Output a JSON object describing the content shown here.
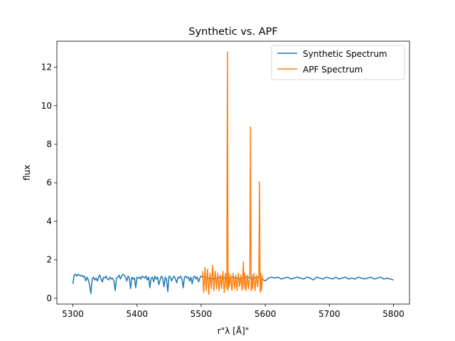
{
  "chart_data": {
    "type": "line",
    "title": "Synthetic vs. APF",
    "xlabel": "r\"$\\lambda$ [$\\AA$]\"",
    "xlabel_display": "r\"λ [Å]\"",
    "ylabel": "flux",
    "xlim": [
      5275,
      5825
    ],
    "ylim": [
      -0.3,
      13.35
    ],
    "xticks": [
      5300,
      5400,
      5500,
      5600,
      5700,
      5800
    ],
    "yticks": [
      0,
      2,
      4,
      6,
      8,
      10,
      12
    ],
    "grid": false,
    "legend_position": "upper right",
    "series": [
      {
        "name": "Synthetic Spectrum",
        "color": "#1f77b4",
        "x": [
          5300,
          5302,
          5304,
          5306,
          5308,
          5310,
          5312,
          5314,
          5316,
          5318,
          5320,
          5322,
          5324,
          5326,
          5328,
          5330,
          5332,
          5334,
          5336,
          5338,
          5340,
          5342,
          5344,
          5346,
          5348,
          5350,
          5352,
          5354,
          5356,
          5358,
          5360,
          5362,
          5364,
          5366,
          5368,
          5370,
          5372,
          5374,
          5376,
          5378,
          5380,
          5382,
          5384,
          5386,
          5388,
          5390,
          5392,
          5394,
          5396,
          5398,
          5400,
          5402,
          5404,
          5406,
          5408,
          5410,
          5412,
          5414,
          5416,
          5418,
          5420,
          5422,
          5424,
          5426,
          5428,
          5430,
          5432,
          5434,
          5436,
          5438,
          5440,
          5442,
          5444,
          5446,
          5448,
          5450,
          5452,
          5454,
          5456,
          5458,
          5460,
          5462,
          5464,
          5466,
          5468,
          5470,
          5472,
          5474,
          5476,
          5478,
          5480,
          5482,
          5484,
          5486,
          5488,
          5490,
          5492,
          5494,
          5496,
          5498,
          5500,
          5505,
          5510,
          5520,
          5530,
          5540,
          5550,
          5560,
          5570,
          5580,
          5590,
          5600,
          5605,
          5610,
          5615,
          5620,
          5625,
          5630,
          5635,
          5640,
          5645,
          5650,
          5655,
          5660,
          5665,
          5670,
          5675,
          5680,
          5685,
          5690,
          5695,
          5700,
          5705,
          5710,
          5715,
          5720,
          5725,
          5730,
          5735,
          5740,
          5745,
          5750,
          5755,
          5760,
          5765,
          5770,
          5775,
          5780,
          5785,
          5790,
          5795,
          5800
        ],
        "y": [
          0.75,
          1.2,
          1.25,
          1.15,
          1.25,
          1.2,
          1.15,
          1.2,
          1.1,
          1.15,
          0.9,
          1.1,
          0.95,
          0.7,
          0.25,
          1.0,
          1.1,
          0.95,
          1.05,
          0.9,
          1.1,
          1.2,
          1.0,
          0.85,
          1.1,
          1.05,
          1.15,
          1.0,
          0.95,
          1.1,
          1.0,
          1.05,
          0.9,
          0.4,
          1.05,
          1.1,
          1.2,
          1.0,
          1.15,
          1.25,
          1.2,
          1.1,
          0.9,
          1.15,
          1.05,
          0.5,
          1.1,
          1.0,
          1.05,
          0.55,
          1.1,
          1.05,
          1.1,
          1.0,
          1.15,
          1.1,
          1.05,
          1.15,
          0.95,
          1.1,
          0.55,
          1.05,
          1.1,
          0.85,
          1.15,
          1.0,
          1.1,
          0.7,
          0.95,
          1.15,
          1.05,
          0.6,
          1.1,
          1.0,
          0.35,
          1.15,
          1.1,
          0.9,
          1.05,
          1.15,
          1.0,
          0.8,
          1.1,
          1.05,
          1.15,
          1.0,
          0.55,
          1.1,
          1.15,
          1.05,
          1.1,
          0.9,
          1.1,
          0.75,
          1.1,
          1.15,
          1.0,
          1.1,
          0.85,
          1.05,
          1.15,
          1.1,
          1.05,
          1.0,
          1.1,
          1.05,
          1.1,
          1.0,
          1.1,
          1.05,
          1.1,
          0.9,
          1.05,
          1.1,
          1.05,
          1.1,
          1.0,
          1.05,
          1.1,
          1.0,
          1.05,
          1.1,
          1.05,
          1.0,
          1.1,
          1.05,
          0.95,
          1.1,
          1.05,
          1.0,
          1.1,
          1.05,
          1.0,
          1.1,
          1.0,
          1.05,
          1.1,
          1.0,
          1.05,
          1.0,
          1.1,
          1.05,
          1.0,
          1.05,
          1.1,
          1.0,
          1.05,
          1.1,
          1.0,
          1.05,
          1.0,
          0.95
        ]
      },
      {
        "name": "APF Spectrum",
        "color": "#ff7f0e",
        "x": [
          5502,
          5504,
          5506,
          5508,
          5510,
          5512,
          5514,
          5516,
          5518,
          5520,
          5522,
          5524,
          5526,
          5528,
          5530,
          5532,
          5534,
          5536,
          5538,
          5540,
          5541,
          5542,
          5543,
          5544,
          5546,
          5548,
          5550,
          5552,
          5554,
          5556,
          5558,
          5560,
          5562,
          5564,
          5566,
          5567,
          5568,
          5570,
          5572,
          5574,
          5576,
          5577,
          5578,
          5579,
          5580,
          5582,
          5584,
          5586,
          5588,
          5590,
          5591,
          5592,
          5593,
          5594,
          5596
        ],
        "y": [
          1.4,
          0.3,
          1.6,
          0.4,
          1.5,
          0.2,
          1.3,
          0.5,
          1.7,
          0.4,
          1.4,
          0.5,
          1.3,
          0.4,
          1.2,
          0.5,
          1.4,
          0.3,
          1.3,
          0.5,
          12.8,
          0.4,
          1.3,
          0.6,
          1.2,
          0.4,
          1.3,
          0.5,
          1.2,
          0.4,
          1.3,
          0.6,
          1.2,
          0.4,
          1.9,
          0.5,
          1.3,
          0.4,
          1.2,
          0.5,
          1.3,
          8.9,
          0.4,
          1.2,
          0.5,
          1.3,
          0.4,
          1.2,
          0.6,
          1.2,
          6.05,
          0.3,
          1.3,
          0.4,
          1.2
        ]
      }
    ]
  }
}
